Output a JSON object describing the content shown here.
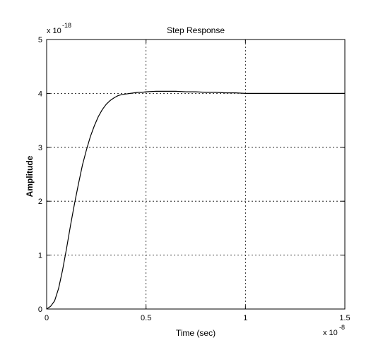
{
  "chart_data": {
    "type": "line",
    "title": "Step Response",
    "xlabel": "Time (sec)",
    "ylabel": "Amplitude",
    "x_multiplier": "x 10",
    "x_exponent": "-8",
    "y_multiplier": "x 10",
    "y_exponent": "-18",
    "xlim": [
      0,
      1.5
    ],
    "ylim": [
      0,
      5
    ],
    "x_ticks": [
      0,
      0.5,
      1,
      1.5
    ],
    "x_tick_labels": [
      "0",
      "0.5",
      "1",
      "1.5"
    ],
    "y_ticks": [
      0,
      1,
      2,
      3,
      4,
      5
    ],
    "y_tick_labels": [
      "0",
      "1",
      "2",
      "3",
      "4",
      "5"
    ],
    "grid": true,
    "series": [
      {
        "color": "#000000",
        "x": [
          0,
          0.02,
          0.04,
          0.06,
          0.08,
          0.1,
          0.12,
          0.14,
          0.16,
          0.18,
          0.2,
          0.22,
          0.24,
          0.26,
          0.28,
          0.3,
          0.32,
          0.34,
          0.36,
          0.38,
          0.4,
          0.42,
          0.44,
          0.46,
          0.48,
          0.5,
          0.55,
          0.6,
          0.65,
          0.7,
          0.75,
          0.8,
          0.85,
          0.9,
          0.95,
          1.0,
          1.1,
          1.2,
          1.3,
          1.4,
          1.5
        ],
        "y": [
          0,
          0.05,
          0.15,
          0.38,
          0.72,
          1.12,
          1.55,
          1.95,
          2.32,
          2.67,
          2.95,
          3.2,
          3.4,
          3.57,
          3.7,
          3.8,
          3.87,
          3.92,
          3.96,
          3.98,
          3.99,
          4.0,
          4.01,
          4.02,
          4.02,
          4.03,
          4.04,
          4.04,
          4.04,
          4.03,
          4.03,
          4.02,
          4.02,
          4.01,
          4.01,
          4.0,
          4.0,
          4.0,
          4.0,
          4.0,
          4.0
        ]
      }
    ]
  }
}
